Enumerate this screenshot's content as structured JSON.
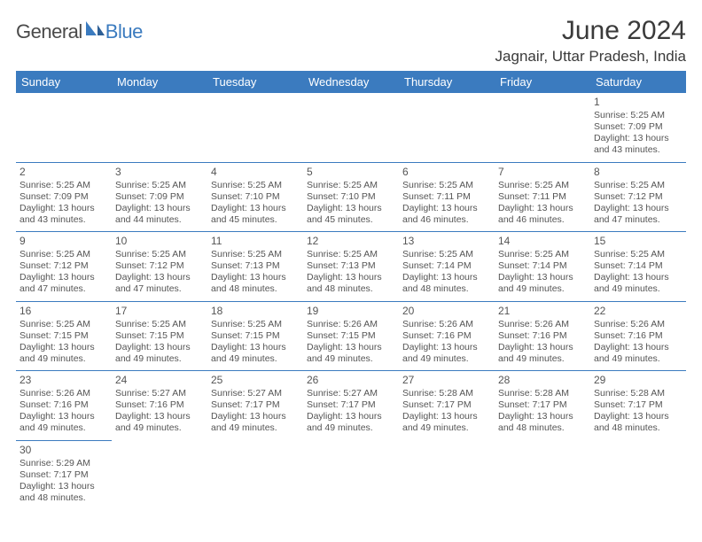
{
  "brand": {
    "part1": "General",
    "part2": "Blue",
    "color1": "#4a4a4a",
    "color2": "#3b7bbf"
  },
  "title": "June 2024",
  "location": "Jagnair, Uttar Pradesh, India",
  "colors": {
    "header_bg": "#3b7bbf",
    "header_fg": "#ffffff",
    "border": "#3b7bbf",
    "text": "#555555"
  },
  "weekdays": [
    "Sunday",
    "Monday",
    "Tuesday",
    "Wednesday",
    "Thursday",
    "Friday",
    "Saturday"
  ],
  "weeks": [
    [
      null,
      null,
      null,
      null,
      null,
      null,
      {
        "d": "1",
        "sr": "5:25 AM",
        "ss": "7:09 PM",
        "dl": "13 hours and 43 minutes."
      }
    ],
    [
      {
        "d": "2",
        "sr": "5:25 AM",
        "ss": "7:09 PM",
        "dl": "13 hours and 43 minutes."
      },
      {
        "d": "3",
        "sr": "5:25 AM",
        "ss": "7:09 PM",
        "dl": "13 hours and 44 minutes."
      },
      {
        "d": "4",
        "sr": "5:25 AM",
        "ss": "7:10 PM",
        "dl": "13 hours and 45 minutes."
      },
      {
        "d": "5",
        "sr": "5:25 AM",
        "ss": "7:10 PM",
        "dl": "13 hours and 45 minutes."
      },
      {
        "d": "6",
        "sr": "5:25 AM",
        "ss": "7:11 PM",
        "dl": "13 hours and 46 minutes."
      },
      {
        "d": "7",
        "sr": "5:25 AM",
        "ss": "7:11 PM",
        "dl": "13 hours and 46 minutes."
      },
      {
        "d": "8",
        "sr": "5:25 AM",
        "ss": "7:12 PM",
        "dl": "13 hours and 47 minutes."
      }
    ],
    [
      {
        "d": "9",
        "sr": "5:25 AM",
        "ss": "7:12 PM",
        "dl": "13 hours and 47 minutes."
      },
      {
        "d": "10",
        "sr": "5:25 AM",
        "ss": "7:12 PM",
        "dl": "13 hours and 47 minutes."
      },
      {
        "d": "11",
        "sr": "5:25 AM",
        "ss": "7:13 PM",
        "dl": "13 hours and 48 minutes."
      },
      {
        "d": "12",
        "sr": "5:25 AM",
        "ss": "7:13 PM",
        "dl": "13 hours and 48 minutes."
      },
      {
        "d": "13",
        "sr": "5:25 AM",
        "ss": "7:14 PM",
        "dl": "13 hours and 48 minutes."
      },
      {
        "d": "14",
        "sr": "5:25 AM",
        "ss": "7:14 PM",
        "dl": "13 hours and 49 minutes."
      },
      {
        "d": "15",
        "sr": "5:25 AM",
        "ss": "7:14 PM",
        "dl": "13 hours and 49 minutes."
      }
    ],
    [
      {
        "d": "16",
        "sr": "5:25 AM",
        "ss": "7:15 PM",
        "dl": "13 hours and 49 minutes."
      },
      {
        "d": "17",
        "sr": "5:25 AM",
        "ss": "7:15 PM",
        "dl": "13 hours and 49 minutes."
      },
      {
        "d": "18",
        "sr": "5:25 AM",
        "ss": "7:15 PM",
        "dl": "13 hours and 49 minutes."
      },
      {
        "d": "19",
        "sr": "5:26 AM",
        "ss": "7:15 PM",
        "dl": "13 hours and 49 minutes."
      },
      {
        "d": "20",
        "sr": "5:26 AM",
        "ss": "7:16 PM",
        "dl": "13 hours and 49 minutes."
      },
      {
        "d": "21",
        "sr": "5:26 AM",
        "ss": "7:16 PM",
        "dl": "13 hours and 49 minutes."
      },
      {
        "d": "22",
        "sr": "5:26 AM",
        "ss": "7:16 PM",
        "dl": "13 hours and 49 minutes."
      }
    ],
    [
      {
        "d": "23",
        "sr": "5:26 AM",
        "ss": "7:16 PM",
        "dl": "13 hours and 49 minutes."
      },
      {
        "d": "24",
        "sr": "5:27 AM",
        "ss": "7:16 PM",
        "dl": "13 hours and 49 minutes."
      },
      {
        "d": "25",
        "sr": "5:27 AM",
        "ss": "7:17 PM",
        "dl": "13 hours and 49 minutes."
      },
      {
        "d": "26",
        "sr": "5:27 AM",
        "ss": "7:17 PM",
        "dl": "13 hours and 49 minutes."
      },
      {
        "d": "27",
        "sr": "5:28 AM",
        "ss": "7:17 PM",
        "dl": "13 hours and 49 minutes."
      },
      {
        "d": "28",
        "sr": "5:28 AM",
        "ss": "7:17 PM",
        "dl": "13 hours and 48 minutes."
      },
      {
        "d": "29",
        "sr": "5:28 AM",
        "ss": "7:17 PM",
        "dl": "13 hours and 48 minutes."
      }
    ],
    [
      {
        "d": "30",
        "sr": "5:29 AM",
        "ss": "7:17 PM",
        "dl": "13 hours and 48 minutes."
      },
      null,
      null,
      null,
      null,
      null,
      null
    ]
  ],
  "labels": {
    "sunrise": "Sunrise: ",
    "sunset": "Sunset: ",
    "daylight": "Daylight: "
  }
}
